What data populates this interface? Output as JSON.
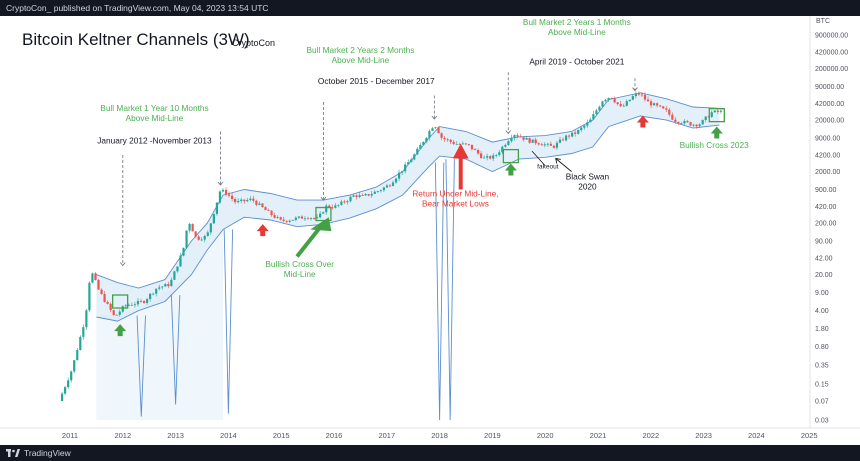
{
  "header": {
    "published_text": "CryptoCon_ published on TradingView.com, May 04, 2023 13:54 UTC"
  },
  "footer": {
    "brand": "TradingView"
  },
  "colors": {
    "band": "#5b8fcf",
    "band_fill": "#dcebf8",
    "candle_up": "#26a69a",
    "candle_down": "#ef5350",
    "green_text": "#4caf50",
    "red_text": "#e53935",
    "green_arrow": "#43a047",
    "red_arrow": "#e53935"
  },
  "chart_data": {
    "type": "candlestick",
    "title": "Bitcoin Keltner Channels (3W)",
    "author": "CryptoCon",
    "y_unit": "BTC",
    "y_scale": "log",
    "grid": false,
    "x_ticks": [
      "2011",
      "2012",
      "2013",
      "2014",
      "2015",
      "2016",
      "2017",
      "2018",
      "2019",
      "2020",
      "2021",
      "2022",
      "2023",
      "2024",
      "2025"
    ],
    "y_ticks": [
      "900000.00",
      "420000.00",
      "200000.00",
      "90000.00",
      "42000.00",
      "20000.00",
      "9000.00",
      "4200.00",
      "2000.00",
      "900.00",
      "420.00",
      "200.00",
      "90.00",
      "42.00",
      "20.00",
      "9.00",
      "4.00",
      "1.80",
      "0.80",
      "0.35",
      "0.15",
      "0.07",
      "0.03"
    ],
    "y_tick_values": [
      900000,
      420000,
      200000,
      90000,
      42000,
      20000,
      9000,
      4200,
      2000,
      900,
      420,
      200,
      90,
      42,
      20,
      9,
      4,
      1.8,
      0.8,
      0.35,
      0.15,
      0.07,
      0.03
    ],
    "price_path": [
      [
        2010.85,
        0.07
      ],
      [
        2011.1,
        0.3
      ],
      [
        2011.35,
        3
      ],
      [
        2011.45,
        25
      ],
      [
        2011.6,
        10
      ],
      [
        2011.9,
        3
      ],
      [
        2012.1,
        5
      ],
      [
        2012.45,
        6
      ],
      [
        2012.7,
        11
      ],
      [
        2012.95,
        13
      ],
      [
        2013.2,
        60
      ],
      [
        2013.3,
        230
      ],
      [
        2013.45,
        100
      ],
      [
        2013.65,
        110
      ],
      [
        2013.9,
        850
      ],
      [
        2014.0,
        800
      ],
      [
        2014.2,
        500
      ],
      [
        2014.5,
        580
      ],
      [
        2014.8,
        330
      ],
      [
        2015.05,
        220
      ],
      [
        2015.3,
        240
      ],
      [
        2015.55,
        270
      ],
      [
        2015.75,
        240
      ],
      [
        2015.9,
        420
      ],
      [
        2016.1,
        420
      ],
      [
        2016.45,
        700
      ],
      [
        2016.6,
        650
      ],
      [
        2016.9,
        850
      ],
      [
        2017.1,
        1100
      ],
      [
        2017.4,
        2500
      ],
      [
        2017.6,
        4500
      ],
      [
        2017.9,
        14000
      ],
      [
        2017.96,
        17000
      ],
      [
        2018.1,
        9000
      ],
      [
        2018.35,
        7000
      ],
      [
        2018.6,
        6500
      ],
      [
        2018.9,
        3600
      ],
      [
        2019.1,
        3900
      ],
      [
        2019.45,
        11000
      ],
      [
        2019.75,
        8000
      ],
      [
        2019.95,
        7200
      ],
      [
        2020.2,
        6000
      ],
      [
        2020.45,
        9500
      ],
      [
        2020.65,
        11500
      ],
      [
        2020.9,
        19000
      ],
      [
        2021.15,
        50000
      ],
      [
        2021.3,
        58000
      ],
      [
        2021.5,
        34000
      ],
      [
        2021.75,
        62000
      ],
      [
        2021.85,
        65000
      ],
      [
        2022.0,
        45000
      ],
      [
        2022.35,
        30000
      ],
      [
        2022.5,
        20000
      ],
      [
        2022.85,
        16500
      ],
      [
        2023.0,
        17000
      ],
      [
        2023.2,
        28000
      ],
      [
        2023.34,
        29000
      ]
    ],
    "upper_band": [
      [
        2011.5,
        20
      ],
      [
        2011.9,
        14
      ],
      [
        2012.3,
        11
      ],
      [
        2012.8,
        16
      ],
      [
        2013.3,
        90
      ],
      [
        2013.6,
        200
      ],
      [
        2013.9,
        700
      ],
      [
        2014.3,
        900
      ],
      [
        2014.8,
        750
      ],
      [
        2015.3,
        560
      ],
      [
        2015.8,
        560
      ],
      [
        2016.3,
        700
      ],
      [
        2016.8,
        1000
      ],
      [
        2017.3,
        2000
      ],
      [
        2017.8,
        9000
      ],
      [
        2018.0,
        15000
      ],
      [
        2018.5,
        12000
      ],
      [
        2019.0,
        7500
      ],
      [
        2019.5,
        9500
      ],
      [
        2020.0,
        10000
      ],
      [
        2020.5,
        12000
      ],
      [
        2020.9,
        20000
      ],
      [
        2021.2,
        50000
      ],
      [
        2021.8,
        68000
      ],
      [
        2022.3,
        52000
      ],
      [
        2022.8,
        36000
      ],
      [
        2023.3,
        34000
      ]
    ],
    "lower_band": [
      [
        2011.5,
        3
      ],
      [
        2011.9,
        2.5
      ],
      [
        2012.3,
        4
      ],
      [
        2012.8,
        6
      ],
      [
        2013.3,
        20
      ],
      [
        2013.6,
        60
      ],
      [
        2013.9,
        150
      ],
      [
        2014.3,
        260
      ],
      [
        2014.8,
        230
      ],
      [
        2015.3,
        170
      ],
      [
        2015.8,
        190
      ],
      [
        2016.3,
        250
      ],
      [
        2016.8,
        380
      ],
      [
        2017.3,
        700
      ],
      [
        2017.8,
        2500
      ],
      [
        2018.0,
        4000
      ],
      [
        2018.5,
        3500
      ],
      [
        2019.0,
        2000
      ],
      [
        2019.5,
        3500
      ],
      [
        2020.0,
        3800
      ],
      [
        2020.5,
        4500
      ],
      [
        2020.9,
        6000
      ],
      [
        2021.2,
        15000
      ],
      [
        2021.8,
        24000
      ],
      [
        2022.3,
        20000
      ],
      [
        2022.8,
        14000
      ],
      [
        2023.3,
        16000
      ]
    ],
    "annotations": [
      {
        "id": "bull1",
        "lines": [
          "Bull Market 1 Year 10 Months",
          "Above Mid-Line"
        ],
        "color": "green",
        "x": 2012.6,
        "y": 30000
      },
      {
        "id": "range1",
        "lines": [
          "January 2012 -November 2013"
        ],
        "color": "dark",
        "x": 2012.6,
        "y": 7000
      },
      {
        "id": "bull2",
        "lines": [
          "Bull Market 2 Years 2 Months",
          "Above Mid-Line"
        ],
        "color": "green",
        "x": 2016.5,
        "y": 400000
      },
      {
        "id": "range2",
        "lines": [
          "October 2015 - December 2017"
        ],
        "color": "dark",
        "x": 2016.8,
        "y": 100000
      },
      {
        "id": "bull3",
        "lines": [
          "Bull Market 2 Years 1 Months",
          "Above Mid-Line"
        ],
        "color": "green",
        "x": 2020.6,
        "y": 1400000
      },
      {
        "id": "range3",
        "lines": [
          "April 2019 - October 2021"
        ],
        "color": "dark",
        "x": 2020.6,
        "y": 240000
      },
      {
        "id": "bullcross2023",
        "lines": [
          "Bullish Cross 2023"
        ],
        "color": "green",
        "x": 2023.2,
        "y": 5800
      },
      {
        "id": "crossover",
        "lines": [
          "Bullish Cross Over",
          "Mid-Line"
        ],
        "color": "green",
        "x": 2015.35,
        "y": 28
      },
      {
        "id": "returnunder",
        "lines": [
          "Return Under Mid-Line,",
          "Bear Market Lows"
        ],
        "color": "red",
        "x": 2018.3,
        "y": 650
      },
      {
        "id": "fakeout",
        "lines": [
          "fakeout"
        ],
        "color": "dark",
        "x": 2020.05,
        "y": 2300,
        "small": true
      },
      {
        "id": "blackswan",
        "lines": [
          "Black Swan",
          "2020"
        ],
        "color": "dark",
        "x": 2020.8,
        "y": 1400
      }
    ],
    "markers": [
      {
        "type": "box",
        "x": 2011.95,
        "y": 6
      },
      {
        "type": "box",
        "x": 2015.8,
        "y": 300
      },
      {
        "type": "box",
        "x": 2019.35,
        "y": 4000
      },
      {
        "type": "box",
        "x": 2023.25,
        "y": 25000
      },
      {
        "type": "arrow-up-green",
        "x": 2011.95,
        "y": 1.6
      },
      {
        "type": "arrow-up-green",
        "x": 2019.35,
        "y": 2100
      },
      {
        "type": "arrow-up-green",
        "x": 2023.25,
        "y": 11000
      },
      {
        "type": "arrow-up-red",
        "x": 2014.65,
        "y": 140
      },
      {
        "type": "arrow-up-red",
        "x": 2021.85,
        "y": 18000
      }
    ]
  }
}
